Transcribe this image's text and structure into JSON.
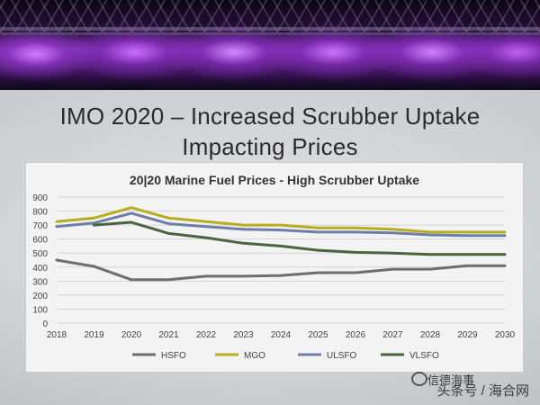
{
  "slide": {
    "title_line1": "IMO 2020 – Increased Scrubber Uptake",
    "title_line2": "Impacting Prices"
  },
  "watermark": {
    "brand": "信德海事",
    "source": "头条号 / 海合网"
  },
  "chart_data": {
    "type": "line",
    "title": "20|20 Marine Fuel Prices - High Scrubber Uptake",
    "xlabel": "",
    "ylabel": "",
    "categories": [
      "2018",
      "2019",
      "2020",
      "2021",
      "2022",
      "2023",
      "2024",
      "2025",
      "2026",
      "2027",
      "2028",
      "2029",
      "2030"
    ],
    "ylim": [
      0,
      900
    ],
    "yticks": [
      0,
      100,
      200,
      300,
      400,
      500,
      600,
      700,
      800,
      900
    ],
    "grid": true,
    "legend": "bottom",
    "series": [
      {
        "name": "HSFO",
        "color": "#6e6e6e",
        "values": [
          450,
          405,
          310,
          310,
          335,
          335,
          340,
          360,
          360,
          385,
          385,
          410,
          410
        ]
      },
      {
        "name": "MGO",
        "color": "#b8ac22",
        "values": [
          725,
          750,
          825,
          750,
          725,
          700,
          700,
          680,
          680,
          670,
          650,
          650,
          650
        ]
      },
      {
        "name": "ULSFO",
        "color": "#6d7fa8",
        "values": [
          690,
          715,
          785,
          710,
          690,
          670,
          665,
          650,
          650,
          645,
          630,
          625,
          625
        ]
      },
      {
        "name": "VLSFO",
        "color": "#4c6340",
        "values": [
          null,
          700,
          720,
          640,
          610,
          570,
          550,
          520,
          505,
          500,
          490,
          490,
          490
        ]
      }
    ]
  }
}
